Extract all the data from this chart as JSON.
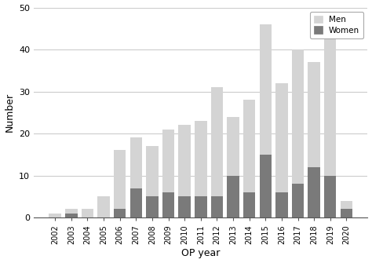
{
  "years": [
    2002,
    2003,
    2004,
    2005,
    2006,
    2007,
    2008,
    2009,
    2010,
    2011,
    2012,
    2013,
    2014,
    2015,
    2016,
    2017,
    2018,
    2019,
    2020
  ],
  "men_total": [
    1,
    2,
    2,
    5,
    16,
    19,
    17,
    21,
    22,
    23,
    31,
    24,
    28,
    46,
    32,
    40,
    37,
    43,
    4
  ],
  "women": [
    0,
    1,
    0,
    0,
    2,
    7,
    5,
    6,
    5,
    5,
    5,
    10,
    6,
    15,
    6,
    8,
    12,
    10,
    2
  ],
  "men_color": "#d4d4d4",
  "women_color": "#7a7a7a",
  "xlabel": "OP year",
  "ylabel": "Number",
  "ylim": [
    0,
    50
  ],
  "yticks": [
    0,
    10,
    20,
    30,
    40,
    50
  ],
  "legend_labels": [
    "Men",
    "Women"
  ],
  "title": "",
  "figsize": [
    4.74,
    3.35
  ],
  "dpi": 100
}
